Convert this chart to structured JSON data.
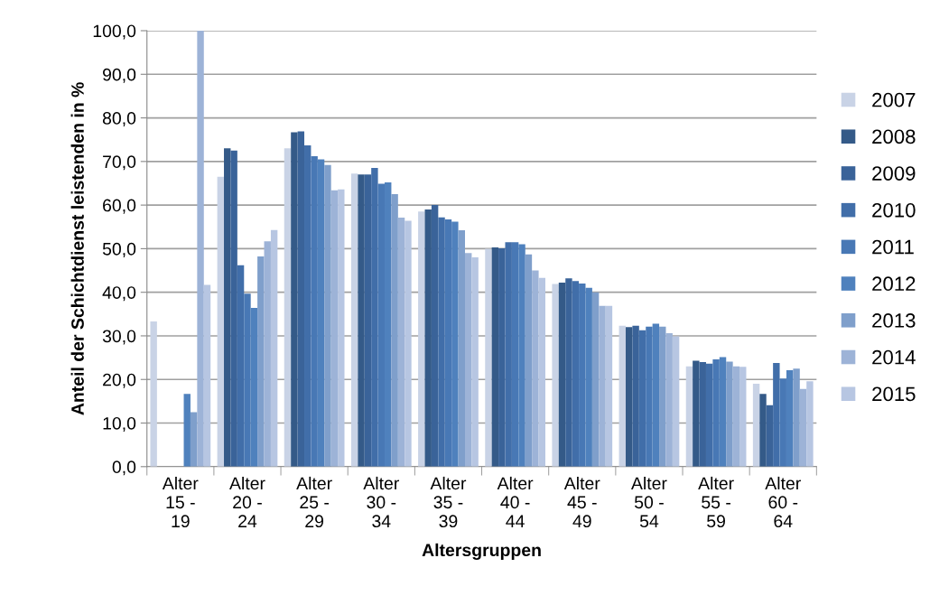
{
  "chart_data": {
    "type": "bar",
    "xlabel": "Altersgruppen",
    "ylabel": "Anteil der Schichtdienst leistenden in %",
    "categories": [
      "Alter\n15 -\n19",
      "Alter\n20 -\n24",
      "Alter\n25 -\n29",
      "Alter\n30 -\n34",
      "Alter\n35 -\n39",
      "Alter\n40 -\n44",
      "Alter\n45 -\n49",
      "Alter\n50 -\n54",
      "Alter\n55 -\n59",
      "Alter\n60 -\n64"
    ],
    "series": [
      {
        "name": "2007",
        "color": "#c9d3e6",
        "values": [
          33.3,
          66.5,
          73.0,
          67.2,
          58.5,
          50.0,
          41.9,
          32.3,
          23.0,
          19.0
        ]
      },
      {
        "name": "2008",
        "color": "#345a88",
        "values": [
          null,
          73.0,
          76.7,
          67.0,
          59.0,
          50.3,
          42.2,
          32.0,
          24.3,
          16.7
        ]
      },
      {
        "name": "2009",
        "color": "#3a6399",
        "values": [
          null,
          72.5,
          76.9,
          67.0,
          60.0,
          50.1,
          43.2,
          32.3,
          24.0,
          14.1
        ]
      },
      {
        "name": "2010",
        "color": "#416ea9",
        "values": [
          null,
          46.2,
          73.7,
          68.5,
          57.2,
          51.5,
          42.6,
          31.3,
          23.6,
          23.8
        ]
      },
      {
        "name": "2011",
        "color": "#4878b5",
        "values": [
          null,
          39.7,
          71.2,
          64.9,
          56.7,
          51.5,
          42.0,
          32.1,
          24.6,
          20.2
        ]
      },
      {
        "name": "2012",
        "color": "#4f81bd",
        "values": [
          16.7,
          36.4,
          70.5,
          65.2,
          56.2,
          51.0,
          41.0,
          32.8,
          25.1,
          22.1
        ]
      },
      {
        "name": "2013",
        "color": "#7f9fcb",
        "values": [
          12.5,
          48.2,
          69.2,
          62.5,
          54.2,
          48.7,
          40.0,
          32.1,
          24.1,
          22.5
        ]
      },
      {
        "name": "2014",
        "color": "#9db3d7",
        "values": [
          100.0,
          51.7,
          63.4,
          57.1,
          49.0,
          45.0,
          36.9,
          30.6,
          23.0,
          17.8
        ]
      },
      {
        "name": "2015",
        "color": "#b7c6e2",
        "values": [
          41.7,
          54.3,
          63.6,
          56.4,
          48.0,
          43.3,
          36.9,
          29.9,
          22.9,
          19.6
        ]
      }
    ],
    "ylim": [
      0,
      100
    ],
    "yticks": [
      {
        "value": 0,
        "label": "0,0"
      },
      {
        "value": 10,
        "label": "10,0"
      },
      {
        "value": 20,
        "label": "20,0"
      },
      {
        "value": 30,
        "label": "30,0"
      },
      {
        "value": 40,
        "label": "40,0"
      },
      {
        "value": 50,
        "label": "50,0"
      },
      {
        "value": 60,
        "label": "60,0"
      },
      {
        "value": 70,
        "label": "70,0"
      },
      {
        "value": 80,
        "label": "80,0"
      },
      {
        "value": 90,
        "label": "90,0"
      },
      {
        "value": 100,
        "label": "100,0"
      }
    ],
    "grid": "y",
    "legend": "right"
  }
}
